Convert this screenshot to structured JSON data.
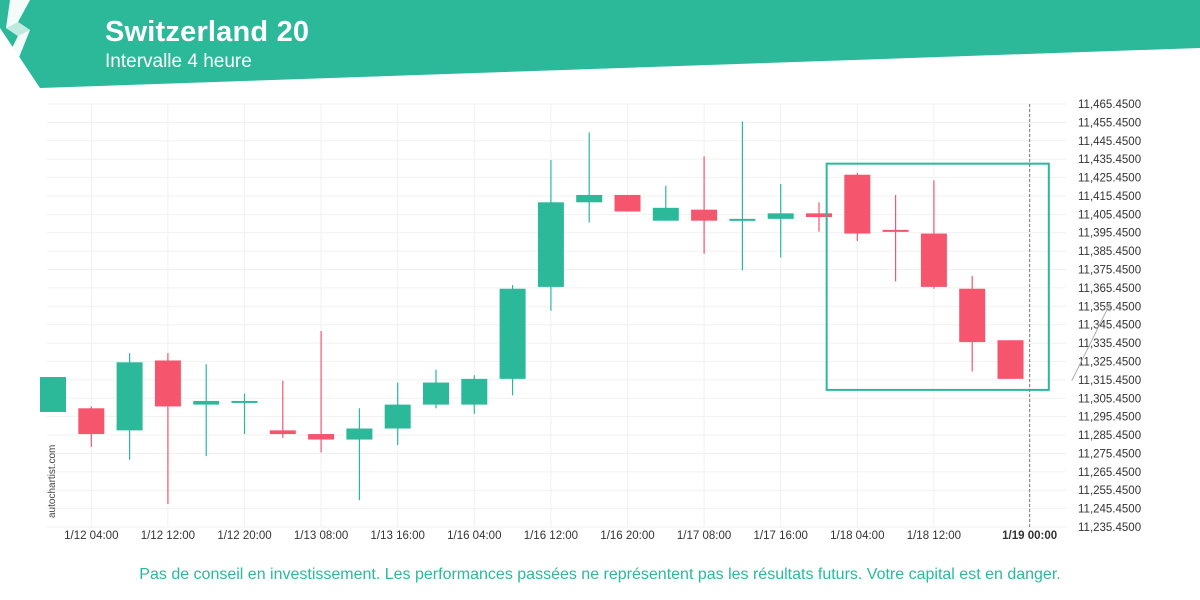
{
  "header": {
    "title": "Switzerland 20",
    "subtitle": "Intervalle 4 heure"
  },
  "watermark": "autochartist.com",
  "disclaimer": "Pas de conseil en investissement. Les performances passées ne représentent pas les résultats futurs. Votre capital est en danger.",
  "colors": {
    "up": "#2bb99a",
    "down": "#f5566e",
    "brand": "#2bb99a",
    "pattern_box": "#2bb99a"
  },
  "chart_data": {
    "type": "candlestick",
    "title": "Switzerland 20",
    "subtitle": "Intervalle 4 heure",
    "ylim": [
      11235.45,
      11465.45
    ],
    "y_ticks": [
      "11,465.4500",
      "11,455.4500",
      "11,445.4500",
      "11,435.4500",
      "11,425.4500",
      "11,415.4500",
      "11,405.4500",
      "11,395.4500",
      "11,385.4500",
      "11,375.4500",
      "11,365.4500",
      "11,355.4500",
      "11,345.4500",
      "11,335.4500",
      "11,325.4500",
      "11,315.4500",
      "11,305.4500",
      "11,295.4500",
      "11,285.4500",
      "11,275.4500",
      "11,265.4500",
      "11,255.4500",
      "11,245.4500",
      "11,235.4500"
    ],
    "x_ticks": [
      {
        "label": "1/12 04:00",
        "index": 1
      },
      {
        "label": "1/12 12:00",
        "index": 3
      },
      {
        "label": "1/12 20:00",
        "index": 5
      },
      {
        "label": "1/13 08:00",
        "index": 7
      },
      {
        "label": "1/13 16:00",
        "index": 9
      },
      {
        "label": "1/16 04:00",
        "index": 11
      },
      {
        "label": "1/16 12:00",
        "index": 13
      },
      {
        "label": "1/16 20:00",
        "index": 15
      },
      {
        "label": "1/17 08:00",
        "index": 17
      },
      {
        "label": "1/17 16:00",
        "index": 19
      },
      {
        "label": "1/18 04:00",
        "index": 21
      },
      {
        "label": "1/18 12:00",
        "index": 23
      },
      {
        "label": "1/19 00:00",
        "index": 25.5,
        "bold": true
      }
    ],
    "candles": [
      {
        "o": 11298,
        "h": 11317,
        "l": 11298,
        "c": 11317
      },
      {
        "o": 11300,
        "h": 11301,
        "l": 11279,
        "c": 11286
      },
      {
        "o": 11288,
        "h": 11330,
        "l": 11272,
        "c": 11325
      },
      {
        "o": 11326,
        "h": 11330,
        "l": 11248,
        "c": 11301
      },
      {
        "o": 11302,
        "h": 11324,
        "l": 11274,
        "c": 11304
      },
      {
        "o": 11303,
        "h": 11308,
        "l": 11286,
        "c": 11304
      },
      {
        "o": 11288,
        "h": 11315,
        "l": 11284,
        "c": 11286
      },
      {
        "o": 11286,
        "h": 11342,
        "l": 11276,
        "c": 11283
      },
      {
        "o": 11283,
        "h": 11300,
        "l": 11250,
        "c": 11289
      },
      {
        "o": 11289,
        "h": 11314,
        "l": 11280,
        "c": 11302
      },
      {
        "o": 11302,
        "h": 11321,
        "l": 11300,
        "c": 11314
      },
      {
        "o": 11302,
        "h": 11318,
        "l": 11297,
        "c": 11316
      },
      {
        "o": 11316,
        "h": 11367,
        "l": 11307,
        "c": 11365
      },
      {
        "o": 11366,
        "h": 11435,
        "l": 11353,
        "c": 11412
      },
      {
        "o": 11412,
        "h": 11450,
        "l": 11401,
        "c": 11416
      },
      {
        "o": 11416,
        "h": 11416,
        "l": 11407,
        "c": 11407
      },
      {
        "o": 11402,
        "h": 11421,
        "l": 11402,
        "c": 11409
      },
      {
        "o": 11408,
        "h": 11437,
        "l": 11384,
        "c": 11402
      },
      {
        "o": 11402,
        "h": 11456,
        "l": 11375,
        "c": 11403
      },
      {
        "o": 11403,
        "h": 11422,
        "l": 11382,
        "c": 11406
      },
      {
        "o": 11406,
        "h": 11412,
        "l": 11396,
        "c": 11404
      },
      {
        "o": 11427,
        "h": 11428,
        "l": 11391,
        "c": 11395
      },
      {
        "o": 11397,
        "h": 11416,
        "l": 11369,
        "c": 11396
      },
      {
        "o": 11395,
        "h": 11424,
        "l": 11365,
        "c": 11366
      },
      {
        "o": 11365,
        "h": 11372,
        "l": 11320,
        "c": 11336
      },
      {
        "o": 11337,
        "h": 11337,
        "l": 11316,
        "c": 11316
      }
    ],
    "pattern_box": {
      "start_index": 20.2,
      "end_index": 26.0,
      "y_top": 11433,
      "y_bottom": 11310
    },
    "projection": {
      "from_index": 26.6,
      "from_y": 11315,
      "to_index": 27.6,
      "to_y": 11357
    },
    "current_time_index": 25.5
  }
}
